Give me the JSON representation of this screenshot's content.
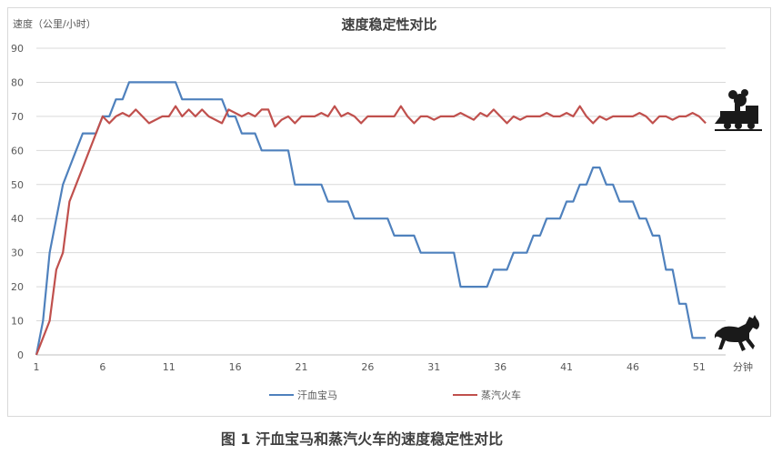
{
  "caption": "图 1  汗血宝马和蒸汽火车的速度稳定性对比",
  "colors": {
    "horse": "#4F81BD",
    "train": "#C0504D",
    "grid": "#d9d9d9",
    "axis": "#bfbfbf"
  },
  "icons": {
    "train": "steam-train-icon",
    "horse": "horse-icon"
  },
  "chart_data": {
    "type": "line",
    "title": "速度稳定性对比",
    "ylabel": "速度（公里/小时）",
    "xlabel": "分钟",
    "ylim": [
      0,
      90
    ],
    "yticks": [
      0,
      10,
      20,
      30,
      40,
      50,
      60,
      70,
      80,
      90
    ],
    "xlim": [
      1,
      53
    ],
    "xticks": [
      1,
      6,
      11,
      16,
      21,
      26,
      31,
      36,
      41,
      46,
      51
    ],
    "grid": true,
    "legend_position": "bottom",
    "series": [
      {
        "name": "汗血宝马",
        "key": "horse",
        "x": [
          1,
          1.5,
          2,
          2.5,
          3,
          3.5,
          4,
          4.5,
          5,
          5.5,
          6,
          6.5,
          7,
          7.5,
          8,
          8.5,
          9,
          9.5,
          10,
          10.5,
          11,
          11.5,
          12,
          12.5,
          13,
          13.5,
          14,
          14.5,
          15,
          15.5,
          16,
          16.5,
          17,
          17.5,
          18,
          18.5,
          19,
          19.5,
          20,
          20.5,
          21,
          21.5,
          22,
          22.5,
          23,
          23.5,
          24,
          24.5,
          25,
          25.5,
          26,
          26.5,
          27,
          27.5,
          28,
          28.5,
          29,
          29.5,
          30,
          30.5,
          31,
          31.5,
          32,
          32.5,
          33,
          33.5,
          34,
          34.5,
          35,
          35.5,
          36,
          36.5,
          37,
          37.5,
          38,
          38.5,
          39,
          39.5,
          40,
          40.5,
          41,
          41.5,
          42,
          42.5,
          43,
          43.5,
          44,
          44.5,
          45,
          45.5,
          46,
          46.5,
          47,
          47.5,
          48,
          48.5,
          49,
          49.5,
          50,
          50.5,
          51,
          51.5
        ],
        "values": [
          0,
          10,
          30,
          40,
          50,
          55,
          60,
          65,
          65,
          65,
          70,
          70,
          75,
          75,
          80,
          80,
          80,
          80,
          80,
          80,
          80,
          80,
          75,
          75,
          75,
          75,
          75,
          75,
          75,
          70,
          70,
          65,
          65,
          65,
          60,
          60,
          60,
          60,
          60,
          50,
          50,
          50,
          50,
          50,
          45,
          45,
          45,
          45,
          40,
          40,
          40,
          40,
          40,
          40,
          35,
          35,
          35,
          35,
          30,
          30,
          30,
          30,
          30,
          30,
          20,
          20,
          20,
          20,
          20,
          25,
          25,
          25,
          30,
          30,
          30,
          35,
          35,
          40,
          40,
          40,
          45,
          45,
          50,
          50,
          55,
          55,
          50,
          50,
          45,
          45,
          45,
          40,
          40,
          35,
          35,
          25,
          25,
          15,
          15,
          5,
          5,
          5
        ]
      },
      {
        "name": "蒸汽火车",
        "key": "train",
        "x": [
          1,
          1.5,
          2,
          2.5,
          3,
          3.5,
          4,
          4.5,
          5,
          5.5,
          6,
          6.5,
          7,
          7.5,
          8,
          8.5,
          9,
          9.5,
          10,
          10.5,
          11,
          11.5,
          12,
          12.5,
          13,
          13.5,
          14,
          14.5,
          15,
          15.5,
          16,
          16.5,
          17,
          17.5,
          18,
          18.5,
          19,
          19.5,
          20,
          20.5,
          21,
          21.5,
          22,
          22.5,
          23,
          23.5,
          24,
          24.5,
          25,
          25.5,
          26,
          26.5,
          27,
          27.5,
          28,
          28.5,
          29,
          29.5,
          30,
          30.5,
          31,
          31.5,
          32,
          32.5,
          33,
          33.5,
          34,
          34.5,
          35,
          35.5,
          36,
          36.5,
          37,
          37.5,
          38,
          38.5,
          39,
          39.5,
          40,
          40.5,
          41,
          41.5,
          42,
          42.5,
          43,
          43.5,
          44,
          44.5,
          45,
          45.5,
          46,
          46.5,
          47,
          47.5,
          48,
          48.5,
          49,
          49.5,
          50,
          50.5,
          51,
          51.5
        ],
        "values": [
          0,
          5,
          10,
          25,
          30,
          45,
          50,
          55,
          60,
          65,
          70,
          68,
          70,
          71,
          70,
          72,
          70,
          68,
          69,
          70,
          70,
          73,
          70,
          72,
          70,
          72,
          70,
          69,
          68,
          72,
          71,
          70,
          71,
          70,
          72,
          72,
          67,
          69,
          70,
          68,
          70,
          70,
          70,
          71,
          70,
          73,
          70,
          71,
          70,
          68,
          70,
          70,
          70,
          70,
          70,
          73,
          70,
          68,
          70,
          70,
          69,
          70,
          70,
          70,
          71,
          70,
          69,
          71,
          70,
          72,
          70,
          68,
          70,
          69,
          70,
          70,
          70,
          71,
          70,
          70,
          71,
          70,
          73,
          70,
          68,
          70,
          69,
          70,
          70,
          70,
          70,
          71,
          70,
          68,
          70,
          70,
          69,
          70,
          70,
          71,
          70,
          68
        ]
      }
    ]
  }
}
